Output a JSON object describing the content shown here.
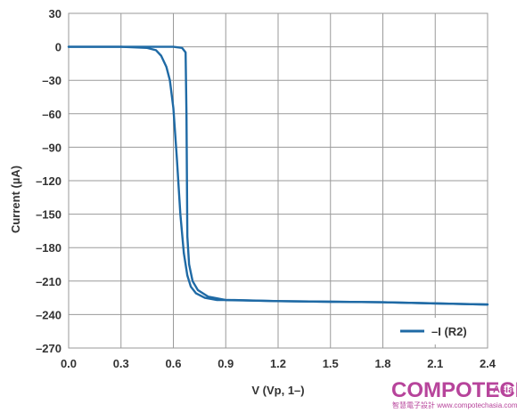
{
  "chart_data": {
    "type": "line",
    "title": "",
    "xlabel": "V (Vp, 1–)",
    "ylabel": "Current (µA)",
    "xlim": [
      0,
      2.4
    ],
    "ylim": [
      -270,
      30
    ],
    "x_ticks": [
      0.0,
      0.3,
      0.6,
      0.9,
      1.2,
      1.5,
      1.8,
      2.1,
      2.4
    ],
    "x_tick_labels": [
      "0.0",
      "0.3",
      "0.6",
      "0.9",
      "1.2",
      "1.5",
      "1.8",
      "2.1",
      "2.4"
    ],
    "y_ticks": [
      30,
      0,
      -30,
      -60,
      -90,
      -120,
      -150,
      -180,
      -210,
      -240,
      -270
    ],
    "y_tick_labels": [
      "30",
      "0",
      "–30",
      "–60",
      "–90",
      "–120",
      "–150",
      "–180",
      "–210",
      "–240",
      "–270"
    ],
    "grid": true,
    "legend_position": "bottom-right",
    "color": "#1f6aa5",
    "series": [
      {
        "name": "–I (R2)",
        "segments": [
          {
            "x": [
              0.0,
              0.3,
              0.45,
              0.5,
              0.53,
              0.56,
              0.58,
              0.6,
              0.62,
              0.64,
              0.66,
              0.68,
              0.7,
              0.73,
              0.78,
              0.85,
              0.95,
              1.2,
              1.5,
              1.8,
              2.1,
              2.4
            ],
            "y": [
              0,
              0,
              -1,
              -3,
              -8,
              -18,
              -30,
              -55,
              -100,
              -150,
              -185,
              -205,
              -215,
              -221,
              -225,
              -227,
              -227,
              -228,
              -228.5,
              -229,
              -230,
              -231
            ]
          },
          {
            "x": [
              0.0,
              0.3,
              0.6,
              0.65,
              0.67,
              0.675,
              0.68,
              0.69,
              0.71,
              0.74,
              0.8,
              0.9,
              1.2,
              1.5,
              1.8,
              2.1,
              2.4
            ],
            "y": [
              0,
              0,
              0,
              -1,
              -5,
              -60,
              -170,
              -195,
              -210,
              -218,
              -224,
              -227,
              -228,
              -228.5,
              -229,
              -230,
              -231
            ]
          }
        ]
      }
    ]
  },
  "watermark": {
    "brand": "COMPOTECH",
    "region": "Asia",
    "tagline": "智慧電子設計 www.compotechasia.com"
  }
}
